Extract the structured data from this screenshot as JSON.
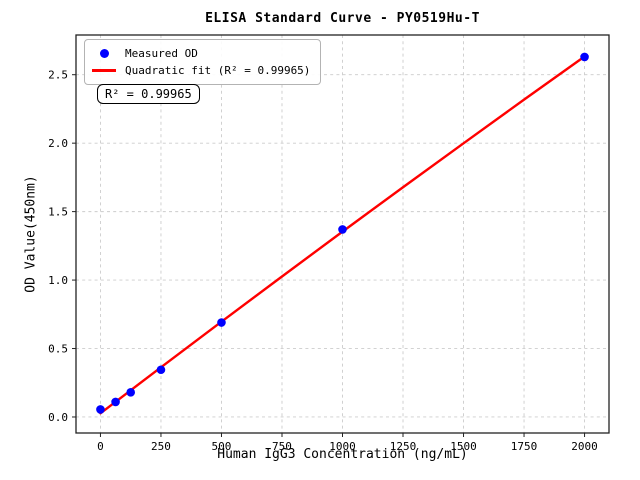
{
  "figure": {
    "background": "#ffffff"
  },
  "chart_data": {
    "type": "scatter",
    "title": "ELISA Standard Curve - PY0519Hu-T",
    "xlabel": "Human IgG3 Concentration (ng/mL)",
    "ylabel": "OD Value(450nm)",
    "xlim": [
      -101,
      2101
    ],
    "ylim": [
      -0.117,
      2.79
    ],
    "grid": true,
    "grid_style": "dashed",
    "legend_position": "upper left",
    "x_ticks": [
      0,
      250,
      500,
      750,
      1000,
      1250,
      1500,
      1750,
      2000
    ],
    "x_tick_labels": [
      "0",
      "250",
      "500",
      "750",
      "1000",
      "1250",
      "1500",
      "1750",
      "2000"
    ],
    "y_ticks": [
      0.0,
      0.5,
      1.0,
      1.5,
      2.0,
      2.5
    ],
    "y_tick_labels": [
      "0.0",
      "0.5",
      "1.0",
      "1.5",
      "2.0",
      "2.5"
    ],
    "series": [
      {
        "name": "Measured OD",
        "type": "scatter",
        "color": "#0000ff",
        "x": [
          0,
          62.5,
          125,
          250,
          500,
          1000,
          2000
        ],
        "y": [
          0.055,
          0.11,
          0.18,
          0.345,
          0.69,
          1.37,
          2.63
        ]
      },
      {
        "name": "Quadratic fit (R² = 0.99965)",
        "type": "line",
        "color": "#ff0000",
        "x": [
          0,
          250,
          500,
          750,
          1000,
          1250,
          1500,
          1750,
          2000
        ],
        "y": [
          0.027,
          0.363,
          0.696,
          1.026,
          1.354,
          1.678,
          1.999,
          2.318,
          2.633
        ]
      }
    ],
    "r_squared": 0.99965,
    "annotation": "R² = 0.99965"
  },
  "legend": {
    "items": [
      {
        "label": "Measured OD",
        "marker": "dot",
        "color": "#0000ff"
      },
      {
        "label": "Quadratic fit (R² = 0.99965)",
        "marker": "line",
        "color": "#ff0000"
      }
    ]
  },
  "colors": {
    "grid": "#cccccc",
    "frame": "#222222",
    "point": "#0000ff",
    "fit_line": "#ff0000",
    "text": "#000000"
  }
}
